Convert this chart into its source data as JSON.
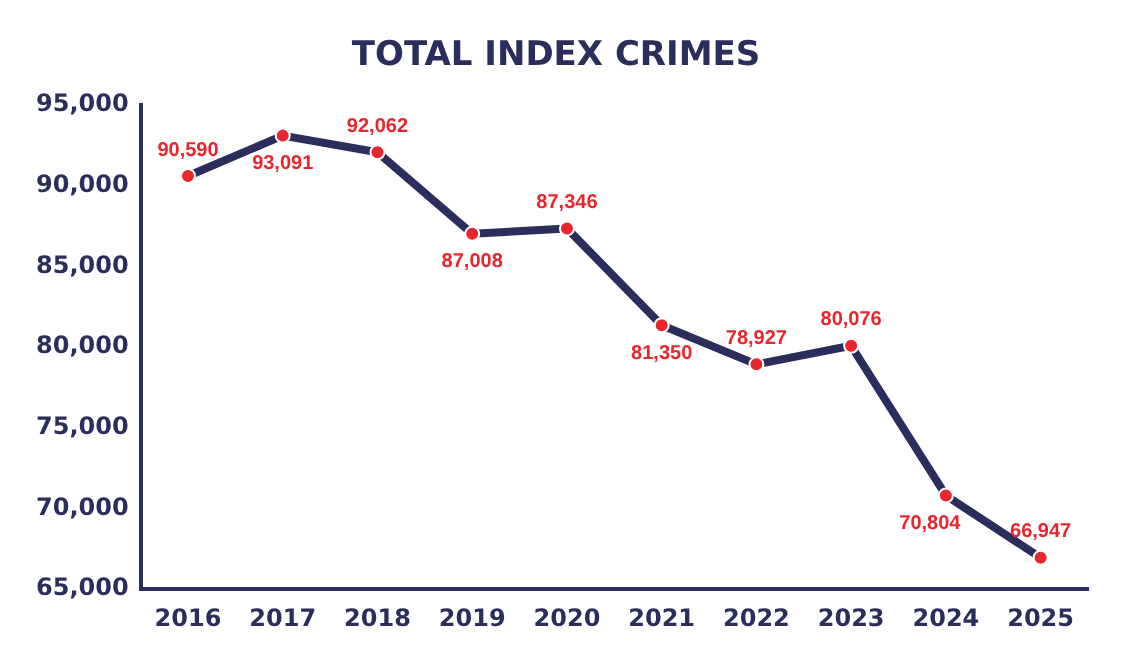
{
  "chart_data": {
    "type": "line",
    "title": "TOTAL INDEX CRIMES",
    "categories": [
      "2016",
      "2017",
      "2018",
      "2019",
      "2020",
      "2021",
      "2022",
      "2023",
      "2024",
      "2025"
    ],
    "series": [
      {
        "color": "#2b2d5c",
        "values": [
          90590,
          93091,
          92062,
          87008,
          87346,
          81350,
          78927,
          80076,
          70804,
          66947
        ],
        "value_labels": [
          "90,590",
          "93,091",
          "92,062",
          "87,008",
          "87,346",
          "81,350",
          "78,927",
          "80,076",
          "70,804",
          "66,947"
        ]
      }
    ],
    "ylim": [
      65000,
      95000
    ],
    "yticks": [
      {
        "value": 65000,
        "label": "65,000"
      },
      {
        "value": 70000,
        "label": "70,000"
      },
      {
        "value": 75000,
        "label": "75,000"
      },
      {
        "value": 80000,
        "label": "80,000"
      },
      {
        "value": 85000,
        "label": "85,000"
      },
      {
        "value": 90000,
        "label": "90,000"
      },
      {
        "value": 95000,
        "label": "95,000"
      }
    ],
    "grid": false,
    "legend": false,
    "marker": "circle",
    "line_style": "solid"
  }
}
